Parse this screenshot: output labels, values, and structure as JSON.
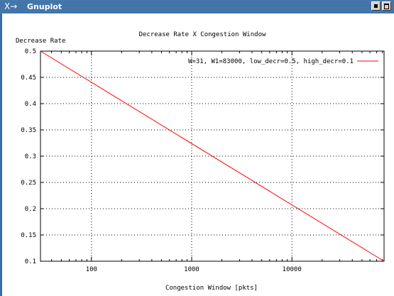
{
  "window": {
    "title": "Gnuplot",
    "logo_text": "X→",
    "buttons": [
      "minimize",
      "maximize"
    ]
  },
  "chart_data": {
    "type": "line",
    "title": "Decrease Rate X Congestion Window",
    "xlabel": "Congestion Window [pkts]",
    "ylabel": "Decrease Rate",
    "xscale": "log",
    "xlim": [
      31,
      83000
    ],
    "ylim": [
      0.1,
      0.5
    ],
    "xticks": [
      100,
      1000,
      10000
    ],
    "xtick_labels": [
      "100",
      "1000",
      "10000"
    ],
    "yticks": [
      0.1,
      0.15,
      0.2,
      0.25,
      0.3,
      0.35,
      0.4,
      0.45,
      0.5
    ],
    "ytick_labels": [
      "0.1",
      "0.15",
      "0.2",
      "0.25",
      "0.3",
      "0.35",
      "0.4",
      "0.45",
      "0.5"
    ],
    "grid": true,
    "legend_position": "top-right",
    "series": [
      {
        "name": "W=31, W1=83000, low_decr=0.5, high_decr=0.1",
        "color": "#ff0000",
        "x": [
          31,
          83000
        ],
        "y": [
          0.5,
          0.1
        ]
      }
    ]
  }
}
